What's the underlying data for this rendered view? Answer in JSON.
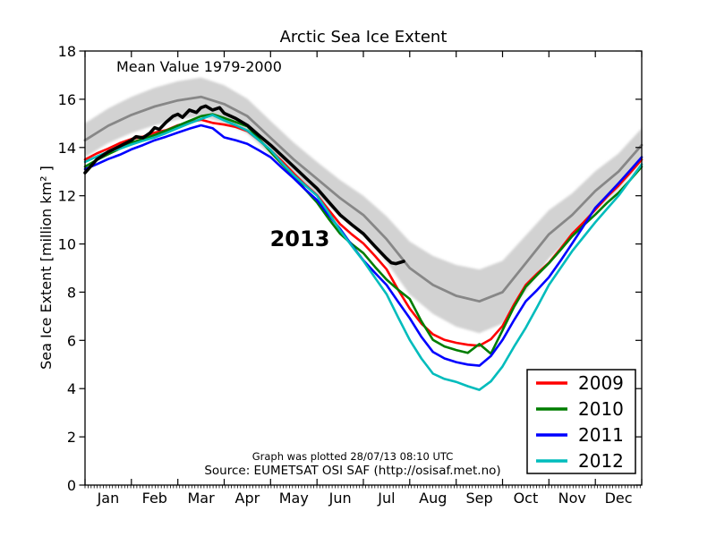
{
  "chart_data": {
    "type": "line",
    "title": "Arctic Sea Ice Extent",
    "xlabel": "",
    "ylabel": "Sea Ice Extent [million km² ]",
    "ylim": [
      0,
      18
    ],
    "y_ticks": [
      0,
      2,
      4,
      6,
      8,
      10,
      12,
      14,
      16,
      18
    ],
    "x_categories": [
      "Jan",
      "Feb",
      "Mar",
      "Apr",
      "May",
      "Jun",
      "Jul",
      "Aug",
      "Sep",
      "Oct",
      "Nov",
      "Dec"
    ],
    "grid": false,
    "legend_position": "lower right",
    "annotations": {
      "mean_value_label": "Mean Value 1979-2000",
      "year_label": "2013",
      "plotted_note": "Graph was plotted 28/07/13 08:10 UTC",
      "source_note": "Source: EUMETSAT OSI SAF (http://osisaf.met.no)"
    },
    "legend": {
      "entries": [
        {
          "label": "2009",
          "color": "#ff0000"
        },
        {
          "label": "2010",
          "color": "#007d00"
        },
        {
          "label": "2011",
          "color": "#0000ff"
        },
        {
          "label": "2012",
          "color": "#00bcbc"
        }
      ]
    },
    "mean_band": {
      "name": "Mean Value 1979-2000",
      "line_color": "#878787",
      "band_color": "#d2d2d2",
      "x_start": 0,
      "x_step": 0.5,
      "values": [
        14.3,
        14.9,
        15.35,
        15.7,
        15.95,
        16.1,
        15.8,
        15.3,
        14.4,
        13.5,
        12.7,
        11.9,
        11.2,
        10.2,
        9.0,
        8.3,
        7.85,
        7.62,
        8.0,
        9.2,
        10.4,
        11.2,
        12.2,
        13.0,
        14.1
      ],
      "halfwidth": [
        0.7,
        0.72,
        0.75,
        0.78,
        0.8,
        0.8,
        0.78,
        0.72,
        0.7,
        0.7,
        0.7,
        0.75,
        0.8,
        0.95,
        1.1,
        1.2,
        1.28,
        1.32,
        1.3,
        1.15,
        1.0,
        0.9,
        0.82,
        0.75,
        0.7
      ]
    },
    "series": [
      {
        "name": "2009",
        "color": "#ff0000",
        "width": 2.6,
        "x_start": 0,
        "x_step": 0.25,
        "values": [
          13.5,
          13.75,
          13.95,
          14.18,
          14.35,
          14.45,
          14.62,
          14.72,
          14.92,
          15.05,
          15.15,
          15.02,
          14.95,
          14.85,
          14.68,
          14.3,
          13.88,
          13.42,
          12.92,
          12.45,
          12.02,
          11.42,
          10.82,
          10.4,
          10.02,
          9.5,
          8.95,
          8.1,
          7.32,
          6.7,
          6.25,
          6.02,
          5.9,
          5.82,
          5.78,
          6.05,
          6.6,
          7.5,
          8.3,
          8.78,
          9.22,
          9.8,
          10.42,
          10.9,
          11.42,
          11.95,
          12.42,
          12.95,
          13.5
        ]
      },
      {
        "name": "2010",
        "color": "#007d00",
        "width": 2.6,
        "x_start": 0,
        "x_step": 0.25,
        "values": [
          13.2,
          13.48,
          13.72,
          13.95,
          14.2,
          14.35,
          14.52,
          14.7,
          14.9,
          15.1,
          15.3,
          15.38,
          15.22,
          15.05,
          14.88,
          14.35,
          13.82,
          13.3,
          12.82,
          12.25,
          11.72,
          11.05,
          10.42,
          10.0,
          9.62,
          9.05,
          8.52,
          8.1,
          7.72,
          6.8,
          6.02,
          5.75,
          5.6,
          5.48,
          5.85,
          5.45,
          6.42,
          7.4,
          8.22,
          8.72,
          9.2,
          9.75,
          10.32,
          10.78,
          11.22,
          11.7,
          12.12,
          12.65,
          13.2
        ]
      },
      {
        "name": "2011",
        "color": "#0000ff",
        "width": 2.6,
        "x_start": 0,
        "x_step": 0.25,
        "values": [
          13.1,
          13.3,
          13.52,
          13.7,
          13.92,
          14.1,
          14.3,
          14.45,
          14.62,
          14.78,
          14.92,
          14.8,
          14.42,
          14.3,
          14.15,
          13.88,
          13.6,
          13.15,
          12.72,
          12.25,
          11.82,
          11.2,
          10.62,
          9.95,
          9.32,
          8.8,
          8.3,
          7.6,
          6.92,
          6.15,
          5.52,
          5.25,
          5.1,
          5.0,
          4.95,
          5.35,
          6.02,
          6.85,
          7.62,
          8.1,
          8.62,
          9.3,
          10.02,
          10.75,
          11.5,
          12.0,
          12.52,
          13.05,
          13.6
        ]
      },
      {
        "name": "2012",
        "color": "#00bcbc",
        "width": 2.6,
        "x_start": 0,
        "x_step": 0.25,
        "values": [
          13.4,
          13.62,
          13.82,
          13.95,
          14.12,
          14.28,
          14.42,
          14.6,
          14.8,
          15.0,
          15.18,
          15.35,
          15.12,
          14.92,
          14.7,
          14.3,
          13.9,
          13.35,
          12.85,
          12.42,
          12.0,
          11.3,
          10.55,
          9.92,
          9.3,
          8.6,
          7.92,
          6.95,
          6.02,
          5.25,
          4.62,
          4.4,
          4.28,
          4.1,
          3.95,
          4.3,
          4.92,
          5.75,
          6.52,
          7.4,
          8.3,
          9.0,
          9.7,
          10.3,
          10.9,
          11.45,
          12.0,
          12.65,
          13.3
        ]
      },
      {
        "name": "2013",
        "color": "#000000",
        "width": 3.6,
        "x": [
          0,
          0.25,
          0.5,
          0.75,
          1,
          1.1,
          1.25,
          1.4,
          1.5,
          1.6,
          1.75,
          1.9,
          2,
          2.1,
          2.25,
          2.4,
          2.5,
          2.6,
          2.75,
          2.9,
          3,
          3.25,
          3.5,
          3.75,
          4,
          4.25,
          4.5,
          4.75,
          5,
          5.25,
          5.5,
          5.75,
          6,
          6.25,
          6.5,
          6.6,
          6.7,
          6.87
        ],
        "values": [
          12.95,
          13.5,
          13.82,
          14.05,
          14.3,
          14.45,
          14.4,
          14.6,
          14.82,
          14.75,
          15.05,
          15.3,
          15.38,
          15.25,
          15.55,
          15.45,
          15.65,
          15.72,
          15.55,
          15.65,
          15.42,
          15.2,
          14.92,
          14.5,
          14.1,
          13.65,
          13.2,
          12.75,
          12.3,
          11.75,
          11.2,
          10.8,
          10.42,
          9.9,
          9.4,
          9.22,
          9.18,
          9.28
        ]
      }
    ]
  }
}
